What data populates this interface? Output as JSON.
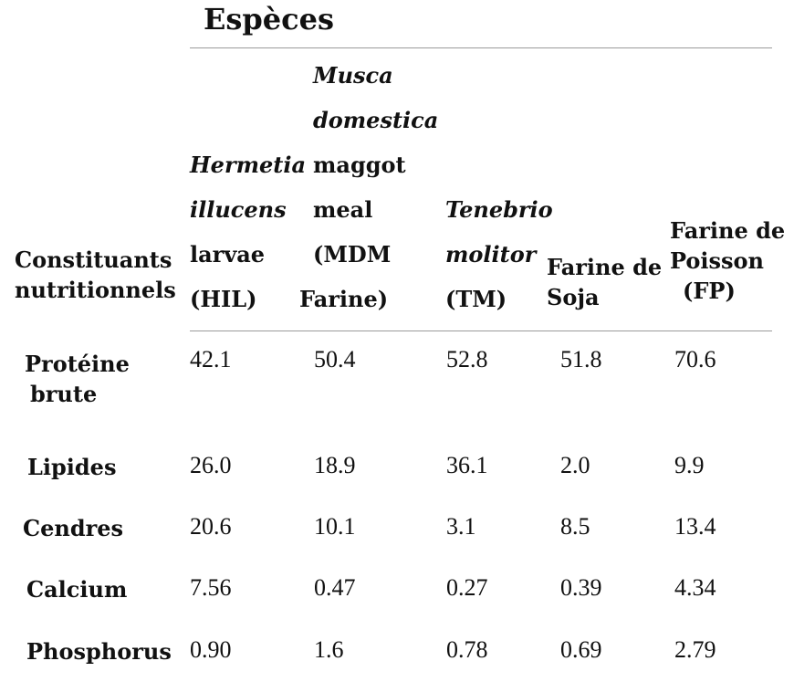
{
  "title": "Espèces",
  "header": {
    "constituents": [
      "Constituants",
      "nutritionnels"
    ],
    "hil": {
      "line1": "Hermetia",
      "line2": "illucens",
      "line3": "larvae",
      "line4": "(HIL)"
    },
    "mdm": {
      "line1": "Musca",
      "line2": "domestica",
      "line3": "maggot",
      "line4": "meal",
      "line5": "(MDM",
      "line6": "Farine)"
    },
    "tm": {
      "line1": "Tenebrio",
      "line2": "molitor",
      "line3": "(TM)"
    },
    "soja": [
      "Farine de",
      "Soja"
    ],
    "fp": [
      "Farine de",
      "Poisson",
      "(FP)"
    ]
  },
  "rows": [
    {
      "label": [
        "Protéine",
        "brute"
      ],
      "values": [
        "42.1",
        "50.4",
        "52.8",
        "51.8",
        "70.6"
      ]
    },
    {
      "label": [
        "Lipides"
      ],
      "values": [
        "26.0",
        "18.9",
        "36.1",
        "2.0",
        "9.9"
      ]
    },
    {
      "label": [
        "Cendres"
      ],
      "values": [
        "20.6",
        "10.1",
        "3.1",
        "8.5",
        "13.4"
      ]
    },
    {
      "label": [
        "Calcium"
      ],
      "values": [
        "7.56",
        "0.47",
        "0.27",
        "0.39",
        "4.34"
      ]
    },
    {
      "label": [
        "Phosphorus"
      ],
      "values": [
        "0.90",
        "1.6",
        "0.78",
        "0.69",
        "2.79"
      ]
    }
  ]
}
